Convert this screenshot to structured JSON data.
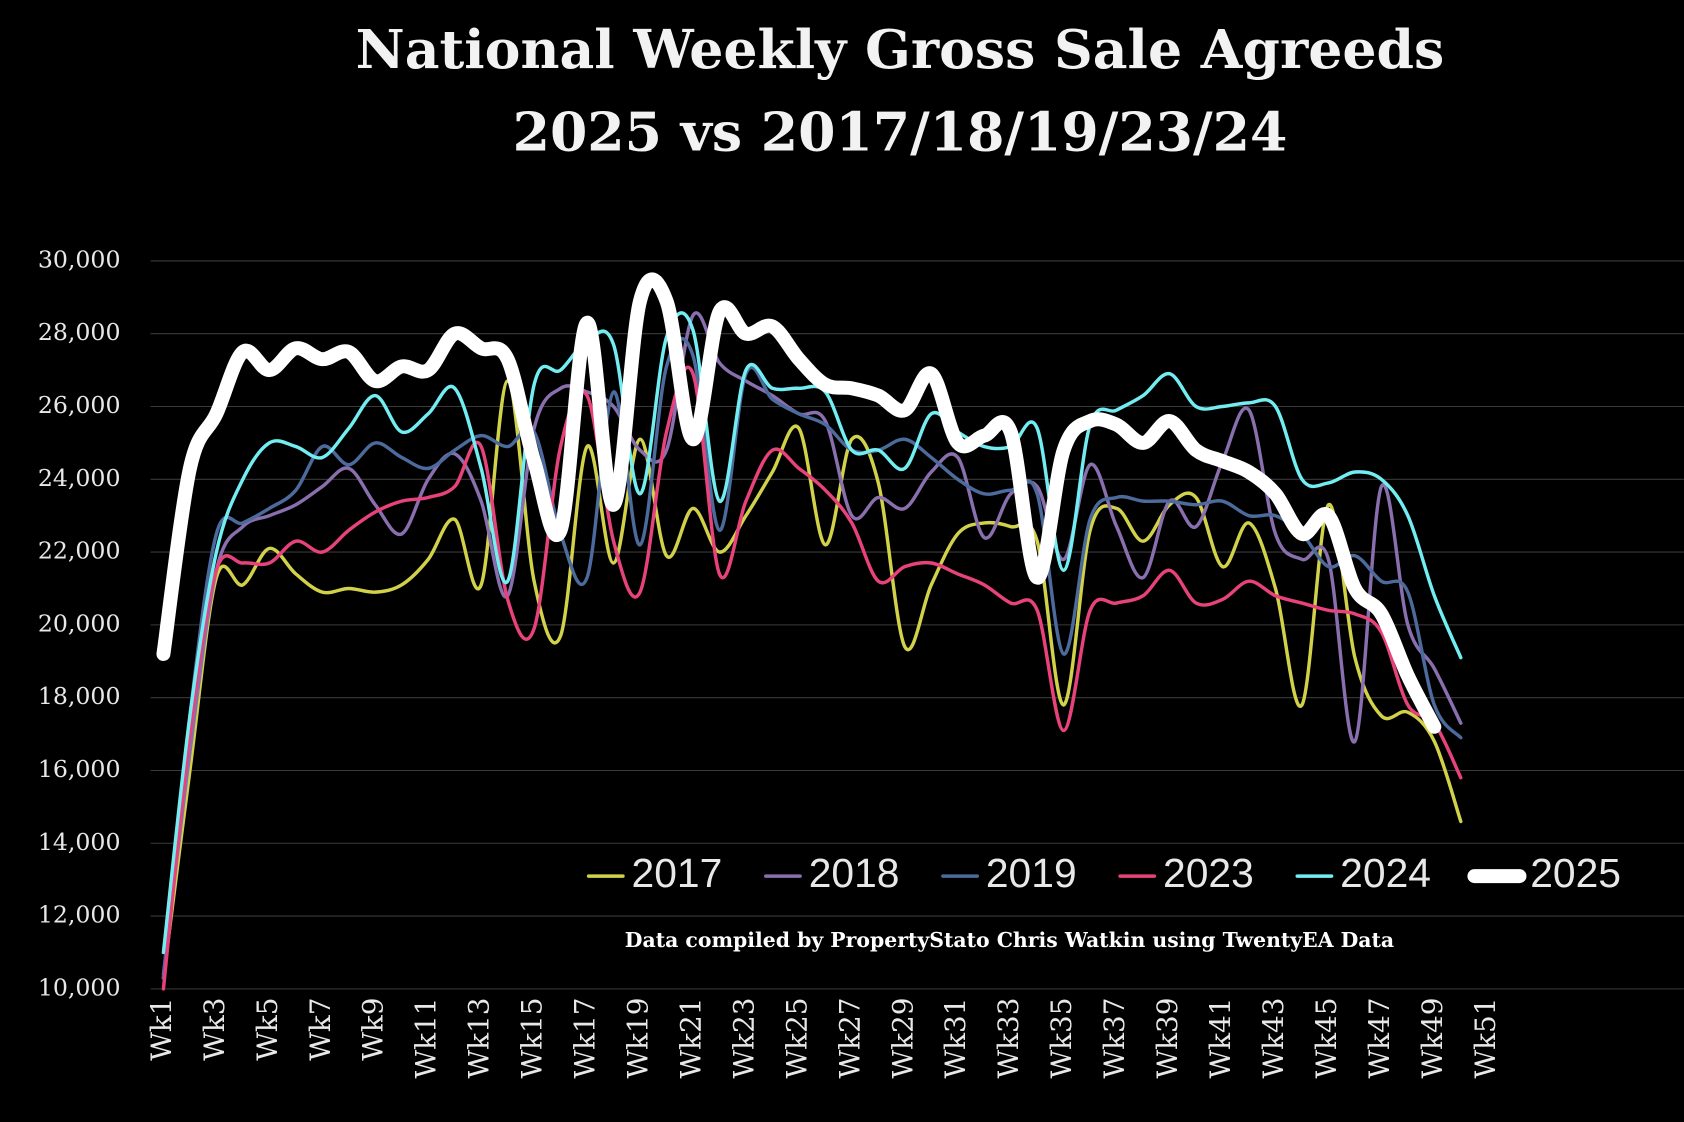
{
  "chart_data": {
    "type": "line",
    "title": "National Weekly Gross Sale Agreeds",
    "subtitle": "2025 vs 2017/18/19/23/24",
    "annotation": "Data compiled by PropertyStato Chris Watkin using TwentyEA Data",
    "categories": [
      "Wk1",
      null,
      "Wk3",
      null,
      "Wk5",
      null,
      "Wk7",
      null,
      "Wk9",
      null,
      "Wk11",
      null,
      "Wk13",
      null,
      "Wk15",
      null,
      "Wk17",
      null,
      "Wk19",
      null,
      "Wk21",
      null,
      "Wk23",
      null,
      "Wk25",
      null,
      "Wk27",
      null,
      "Wk29",
      null,
      "Wk31",
      null,
      "Wk33",
      null,
      "Wk35",
      null,
      "Wk37",
      null,
      "Wk39",
      null,
      "Wk41",
      null,
      "Wk43",
      null,
      "Wk45",
      null,
      "Wk47",
      null,
      "Wk49",
      null,
      "Wk51"
    ],
    "ylim": [
      10000,
      30000
    ],
    "yticks": [
      {
        "value": 10000,
        "label": "10,000"
      },
      {
        "value": 12000,
        "label": "12,000"
      },
      {
        "value": 14000,
        "label": "14,000"
      },
      {
        "value": 16000,
        "label": "16,000"
      },
      {
        "value": 18000,
        "label": "18,000"
      },
      {
        "value": 20000,
        "label": "20,000"
      },
      {
        "value": 22000,
        "label": "22,000"
      },
      {
        "value": 24000,
        "label": "24,000"
      },
      {
        "value": 26000,
        "label": "26,000"
      },
      {
        "value": 28000,
        "label": "28,000"
      },
      {
        "value": 30000,
        "label": "30,000"
      }
    ],
    "grid": true,
    "legend": "lower right",
    "series": [
      {
        "name": "2017",
        "color": "#d2d24a",
        "values": [
          10300,
          16000,
          21300,
          21100,
          22100,
          21400,
          20900,
          21000,
          20900,
          21100,
          21800,
          22900,
          21100,
          26700,
          21200,
          19700,
          24900,
          21700,
          25100,
          21900,
          23200,
          22000,
          23000,
          24200,
          25400,
          22200,
          25100,
          23900,
          19400,
          21100,
          22500,
          22800,
          22700,
          22300,
          17800,
          22600,
          23200,
          22300,
          23300,
          23500,
          21600,
          22800,
          21000,
          17800,
          23300,
          19100,
          17500,
          17600,
          16800,
          14600,
          null
        ]
      },
      {
        "name": "2018",
        "color": "#8a6fae",
        "values": [
          10400,
          16500,
          21500,
          22700,
          23000,
          23300,
          23800,
          24300,
          23300,
          22500,
          24000,
          24700,
          23400,
          20800,
          25400,
          26500,
          26400,
          26000,
          24800,
          24800,
          28500,
          27200,
          26700,
          26300,
          25800,
          25600,
          23000,
          23500,
          23200,
          24200,
          24600,
          22400,
          23600,
          23800,
          21800,
          24400,
          22700,
          21300,
          23400,
          22700,
          24500,
          25900,
          22500,
          21800,
          21800,
          16800,
          23800,
          20000,
          18800,
          17300,
          null
        ]
      },
      {
        "name": "2019",
        "color": "#4d6a9c",
        "values": [
          10300,
          17500,
          22500,
          22800,
          23200,
          23700,
          24900,
          24400,
          25000,
          24600,
          24300,
          24800,
          25200,
          24900,
          25300,
          22500,
          21300,
          26400,
          22200,
          27100,
          27400,
          22600,
          26900,
          26200,
          25800,
          25500,
          24800,
          24800,
          25100,
          24600,
          24000,
          23600,
          23700,
          23600,
          19200,
          22900,
          23500,
          23400,
          23400,
          23300,
          23400,
          23000,
          23000,
          22500,
          21600,
          21900,
          21200,
          20900,
          17800,
          16900,
          null
        ]
      },
      {
        "name": "2023",
        "color": "#e8427c",
        "values": [
          10000,
          17000,
          21500,
          21700,
          21700,
          22300,
          22000,
          22600,
          23100,
          23400,
          23500,
          23800,
          24900,
          20700,
          19900,
          24900,
          26300,
          22300,
          20900,
          25300,
          26900,
          21400,
          23400,
          24800,
          24300,
          23700,
          22800,
          21200,
          21600,
          21700,
          21400,
          21100,
          20600,
          20400,
          17100,
          20400,
          20600,
          20800,
          21500,
          20600,
          20700,
          21200,
          20800,
          20600,
          20400,
          20300,
          19800,
          17800,
          17300,
          15800,
          null
        ]
      },
      {
        "name": "2024",
        "color": "#72eef2",
        "values": [
          11000,
          17500,
          22000,
          24000,
          25000,
          24900,
          24600,
          25400,
          26300,
          25300,
          25800,
          26500,
          24300,
          21200,
          26600,
          27000,
          27800,
          27700,
          23600,
          27900,
          28100,
          23400,
          27000,
          26500,
          26500,
          26400,
          24800,
          24800,
          24300,
          25800,
          25300,
          24900,
          24900,
          25400,
          21500,
          25500,
          25900,
          26300,
          26900,
          26000,
          26000,
          26100,
          26000,
          24000,
          23900,
          24200,
          24000,
          23000,
          20800,
          19100,
          null
        ]
      },
      {
        "name": "2025",
        "color": "#ffffff",
        "values": [
          19200,
          24300,
          25800,
          27500,
          27000,
          27600,
          27300,
          27500,
          26700,
          27100,
          27000,
          28000,
          27600,
          27300,
          24500,
          22600,
          28300,
          23300,
          28900,
          28900,
          25100,
          28600,
          28000,
          28200,
          27300,
          26600,
          26500,
          26300,
          25900,
          26900,
          25000,
          25200,
          25300,
          21300,
          24800,
          25600,
          25500,
          25000,
          25600,
          24800,
          24500,
          24200,
          23600,
          22500,
          23000,
          21000,
          20300,
          18600,
          17200,
          null,
          null
        ]
      }
    ]
  }
}
